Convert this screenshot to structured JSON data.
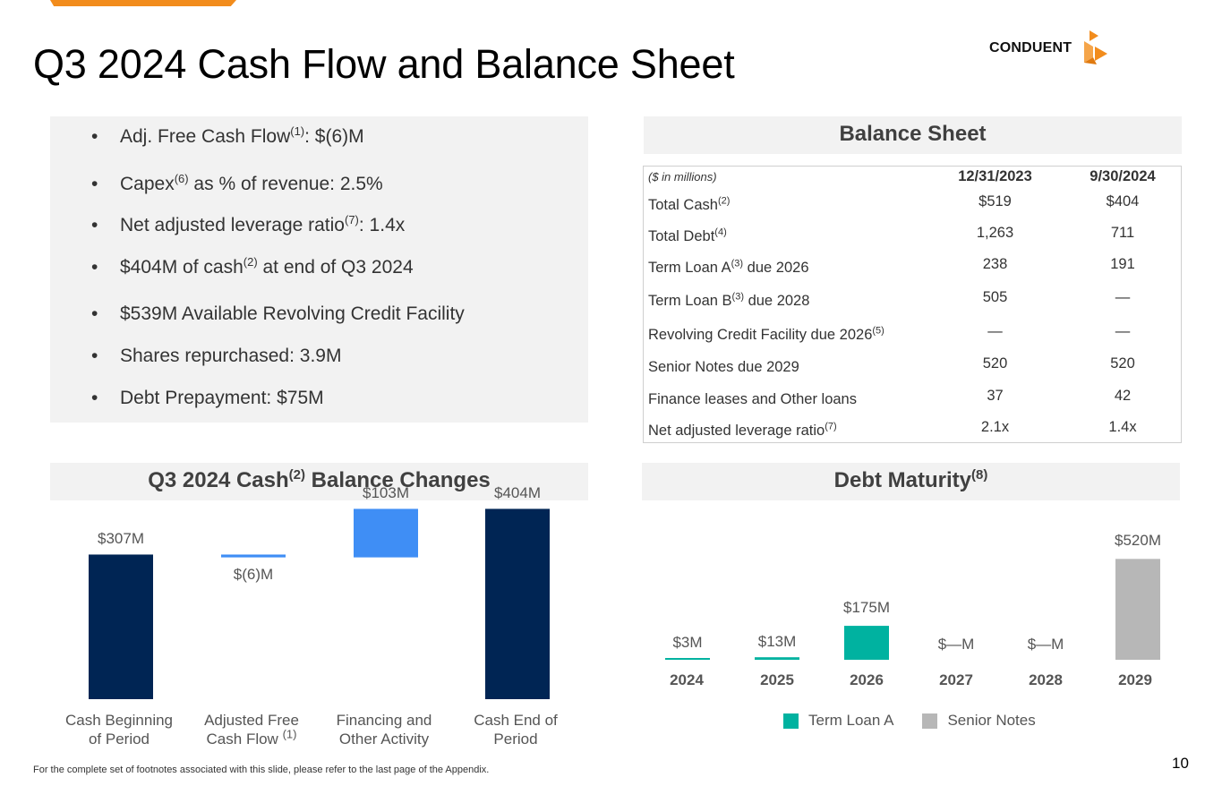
{
  "title": "Q3 2024 Cash Flow and Balance Sheet",
  "logo": {
    "text": "CONDUENT"
  },
  "colors": {
    "brand_orange": "#f28c1c",
    "navy": "#002554",
    "blue": "#3f8ef5",
    "teal": "#00b2a0",
    "gray": "#b7b7b7"
  },
  "bullets": [
    {
      "dot": "•",
      "pre": "Adj. Free Cash Flow",
      "sup": "(1)",
      "post": ": $(6)M"
    },
    {
      "dot": "•",
      "pre": "Capex",
      "sup": "(6)",
      "post": " as % of revenue: 2.5%"
    },
    {
      "dot": "•",
      "pre": "Net adjusted leverage ratio",
      "sup": "(7)",
      "post": ": 1.4x"
    },
    {
      "dot": "•",
      "pre": "$404M of cash",
      "sup": "(2)",
      "post": " at end of Q3 2024"
    },
    {
      "dot": "•",
      "pre": "$539M Available Revolving Credit Facility",
      "sup": "",
      "post": ""
    },
    {
      "dot": "•",
      "pre": "Shares repurchased: 3.9M",
      "sup": "",
      "post": ""
    },
    {
      "dot": "•",
      "pre": "Debt Prepayment: $75M",
      "sup": "",
      "post": ""
    }
  ],
  "balance_sheet": {
    "title": "Balance Sheet",
    "units_label": "($ in millions)",
    "col1": "12/31/2023",
    "col2": "9/30/2024",
    "rows": [
      {
        "pre": "Total Cash",
        "sup": "(2)",
        "post": "",
        "v1": "$519",
        "v2": "$404"
      },
      {
        "pre": "Total Debt",
        "sup": "(4)",
        "post": "",
        "v1": "1,263",
        "v2": "711"
      },
      {
        "pre": "Term Loan A",
        "sup": "(3)",
        "post": " due 2026",
        "v1": "238",
        "v2": "191"
      },
      {
        "pre": "Term Loan B",
        "sup": "(3)",
        "post": " due 2028",
        "v1": "505",
        "v2": "—"
      },
      {
        "pre": "Revolving Credit Facility due 2026",
        "sup": "(5)",
        "post": "",
        "v1": "—",
        "v2": "—"
      },
      {
        "pre": "Senior Notes due 2029",
        "sup": "",
        "post": "",
        "v1": "520",
        "v2": "520"
      },
      {
        "pre": "Finance leases and Other loans",
        "sup": "",
        "post": "",
        "v1": "37",
        "v2": "42"
      },
      {
        "pre": "Net adjusted leverage ratio",
        "sup": "(7)",
        "post": "",
        "v1": "2.1x",
        "v2": "1.4x"
      }
    ]
  },
  "cash_changes": {
    "title_pre": "Q3 2024 Cash",
    "title_sup": "(2)",
    "title_post": " Balance Changes"
  },
  "debt_maturity": {
    "title_pre": "Debt Maturity",
    "title_sup": "(8)"
  },
  "chart_data": [
    {
      "type": "bar",
      "subtype": "waterfall",
      "title": "Q3 2024 Cash(2) Balance Changes",
      "categories": [
        {
          "line1": "Cash Beginning",
          "line2": "of  Period",
          "sup": ""
        },
        {
          "line1": "Adjusted Free",
          "line2": "Cash Flow",
          "sup": "(1)"
        },
        {
          "line1": "Financing and",
          "line2": "Other Activity",
          "sup": ""
        },
        {
          "line1": "Cash End of",
          "line2": "Period",
          "sup": ""
        }
      ],
      "values": [
        307,
        -6,
        103,
        404
      ],
      "labels": [
        "$307M",
        "$(6)M",
        "$103M",
        "$404M"
      ],
      "kinds": [
        "total",
        "delta",
        "delta",
        "total"
      ],
      "colors": [
        "#002554",
        "#3f8ef5",
        "#3f8ef5",
        "#002554"
      ],
      "ylim": [
        0,
        420
      ]
    },
    {
      "type": "bar",
      "title": "Debt Maturity(8)",
      "categories": [
        "2024",
        "2025",
        "2026",
        "2027",
        "2028",
        "2029"
      ],
      "series": [
        {
          "name": "Term Loan A",
          "color": "#00b2a0",
          "values": [
            3,
            13,
            175,
            0,
            0,
            0
          ]
        },
        {
          "name": "Senior Notes",
          "color": "#b7b7b7",
          "values": [
            0,
            0,
            0,
            0,
            0,
            520
          ]
        }
      ],
      "labels": [
        "$3M",
        "$13M",
        "$175M",
        "$—M",
        "$—M",
        "$520M"
      ],
      "ylim": [
        0,
        540
      ]
    }
  ],
  "footnote": "For the complete set of footnotes associated with this slide, please refer to the last page of the Appendix.",
  "page_number": "10"
}
